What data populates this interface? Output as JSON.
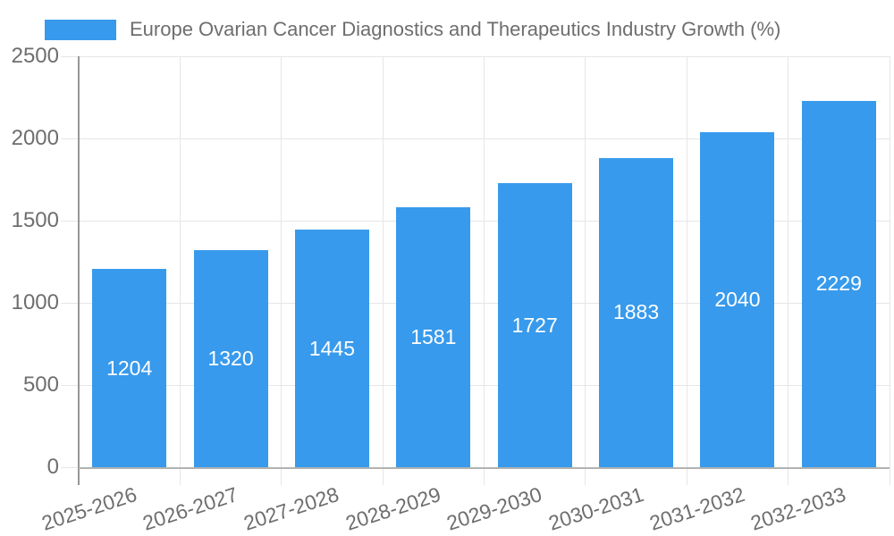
{
  "legend": {
    "position": "top-left",
    "items": [
      {
        "label": "Europe Ovarian Cancer Diagnostics and Therapeutics Industry Growth (%)",
        "swatch_color": "#389AEC"
      }
    ]
  },
  "chart_data": {
    "type": "bar",
    "title": "",
    "xlabel": "",
    "ylabel": "",
    "series_name": "Europe Ovarian Cancer Diagnostics and Therapeutics Industry Growth (%)",
    "categories": [
      "2025-2026",
      "2026-2027",
      "2027-2028",
      "2028-2029",
      "2029-2030",
      "2030-2031",
      "2031-2032",
      "2032-2033"
    ],
    "values": [
      1204,
      1320,
      1445,
      1581,
      1727,
      1883,
      2040,
      2229
    ],
    "bar_value_labels": [
      "1204",
      "1320",
      "1445",
      "1581",
      "1727",
      "1883",
      "2040",
      "2229"
    ],
    "ylim": [
      0,
      2500
    ],
    "yticks": [
      0,
      500,
      1000,
      1500,
      2000,
      2500
    ],
    "ytick_labels": [
      "0",
      "500",
      "1000",
      "1500",
      "2000",
      "2500"
    ],
    "grid": true,
    "x_label_rotation_deg": -18,
    "legend_position": "top-left",
    "colors": {
      "bar": "#389AEC",
      "bar_label": "#ffffff",
      "grid": "#e6e6e6",
      "axis_y": "#979797",
      "axis_x": "#b2b2b2",
      "tick_text": "#6e6e6e",
      "legend_text": "#6e6e6e",
      "background": "#ffffff"
    }
  }
}
